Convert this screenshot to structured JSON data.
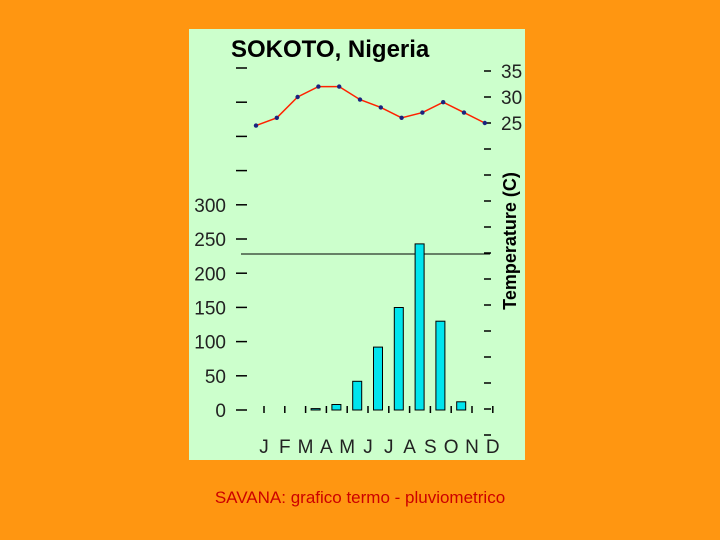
{
  "chart_data": {
    "type": "bar+line",
    "title": "SOKOTO, Nigeria",
    "categories": [
      "J",
      "F",
      "M",
      "A",
      "M",
      "J",
      "J",
      "A",
      "S",
      "O",
      "N",
      "D"
    ],
    "precipitation": {
      "axis_ticks": [
        "0",
        "50",
        "100",
        "150",
        "200",
        "250",
        "300"
      ],
      "ylim": [
        0,
        300
      ],
      "values": [
        0,
        0,
        2,
        8,
        42,
        92,
        150,
        243,
        130,
        12,
        0,
        0
      ]
    },
    "temperature": {
      "ylabel": "Temperature (C)",
      "axis_ticks": [
        "25",
        "30",
        "35"
      ],
      "values": [
        24.5,
        26,
        30,
        32,
        32,
        29.5,
        28,
        26,
        27,
        29,
        27,
        25
      ],
      "line_color": "#ff2200",
      "marker_color": "#1a237e"
    },
    "colors": {
      "plot_bg": "#ccffcc",
      "bar": "#00e5ee",
      "accent": "#ff9611"
    }
  },
  "caption": "SAVANA: grafico termo - pluviometrico"
}
